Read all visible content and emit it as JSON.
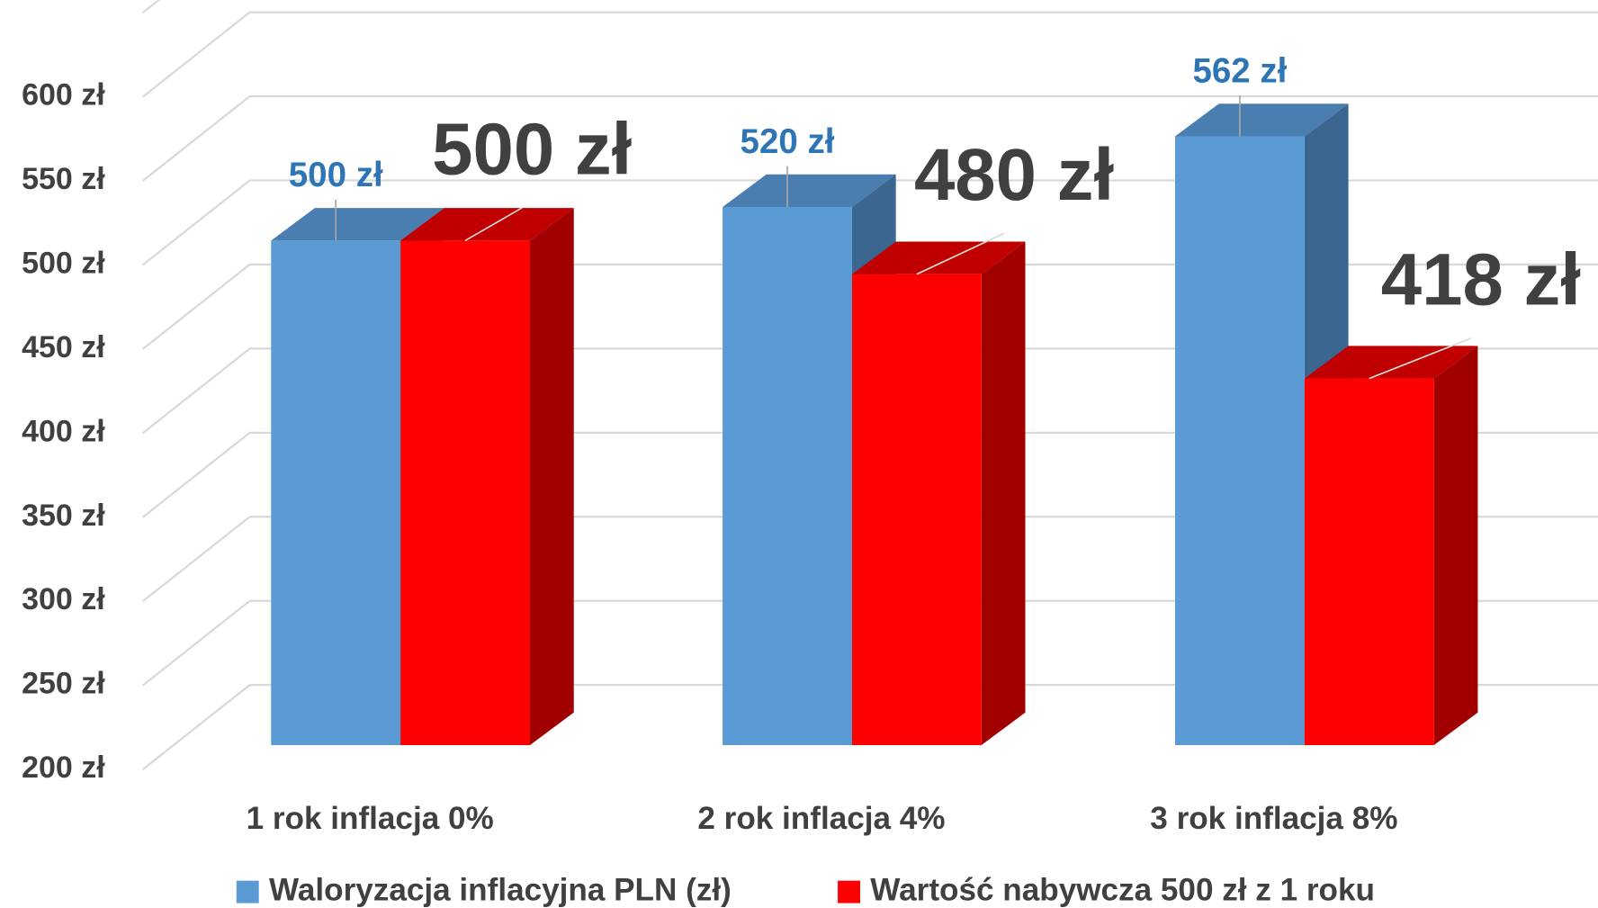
{
  "chart_data": {
    "type": "bar3d",
    "categories": [
      "1 rok inflacja 0%",
      "2 rok inflacja 4%",
      "3 rok inflacja 8%"
    ],
    "series": [
      {
        "name": "Waloryzacja inflacyjna PLN (zł)",
        "color": "#5b9bd5",
        "values": [
          500,
          520,
          562
        ],
        "value_labels": [
          "500 zł",
          "520 zł",
          "562 zł"
        ]
      },
      {
        "name": "Wartość nabywcza 500 zł z 1 roku",
        "color": "#ff0000",
        "values": [
          500,
          480,
          418
        ],
        "value_labels": [
          "500 zł",
          "480 zł",
          "418 zł"
        ]
      }
    ],
    "ylim": [
      200,
      650
    ],
    "yticks": [
      {
        "value": 200,
        "label": "200 zł"
      },
      {
        "value": 250,
        "label": "250 zł"
      },
      {
        "value": 300,
        "label": "300 zł"
      },
      {
        "value": 350,
        "label": "350 zł"
      },
      {
        "value": 400,
        "label": "400 zł"
      },
      {
        "value": 450,
        "label": "450 zł"
      },
      {
        "value": 500,
        "label": "500 zł"
      },
      {
        "value": 550,
        "label": "550 zł"
      },
      {
        "value": 600,
        "label": "600 zł"
      }
    ],
    "grid": true,
    "legend": "bottom"
  }
}
